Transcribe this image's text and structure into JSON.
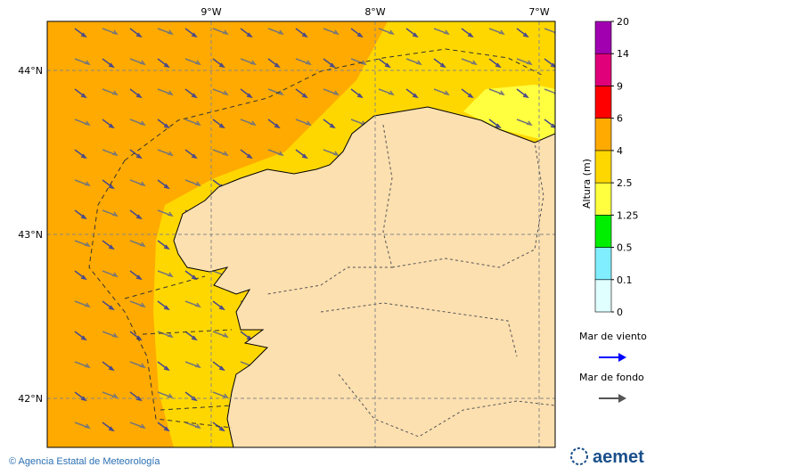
{
  "map": {
    "lon_labels": [
      "9°W",
      "8°W",
      "7°W"
    ],
    "lat_labels": [
      "44°N",
      "43°N",
      "42°N"
    ]
  },
  "colorbar": {
    "title": "Altura (m)",
    "levels": [
      0,
      0.1,
      0.5,
      1.25,
      2.5,
      4,
      6,
      9,
      14,
      20
    ],
    "colors": [
      "#e0ffff",
      "#80eeff",
      "#00ee00",
      "#ffff40",
      "#ffd700",
      "#ffaa00",
      "#ff0000",
      "#e0007a",
      "#a000b0"
    ]
  },
  "legend": {
    "items": [
      {
        "label": "Mar de viento",
        "color": "#0000ff"
      },
      {
        "label": "Mar de fondo",
        "color": "#555555"
      }
    ]
  },
  "footer": {
    "credit": "© Agencia Estatal de Meteorología",
    "logo": "aemet"
  }
}
